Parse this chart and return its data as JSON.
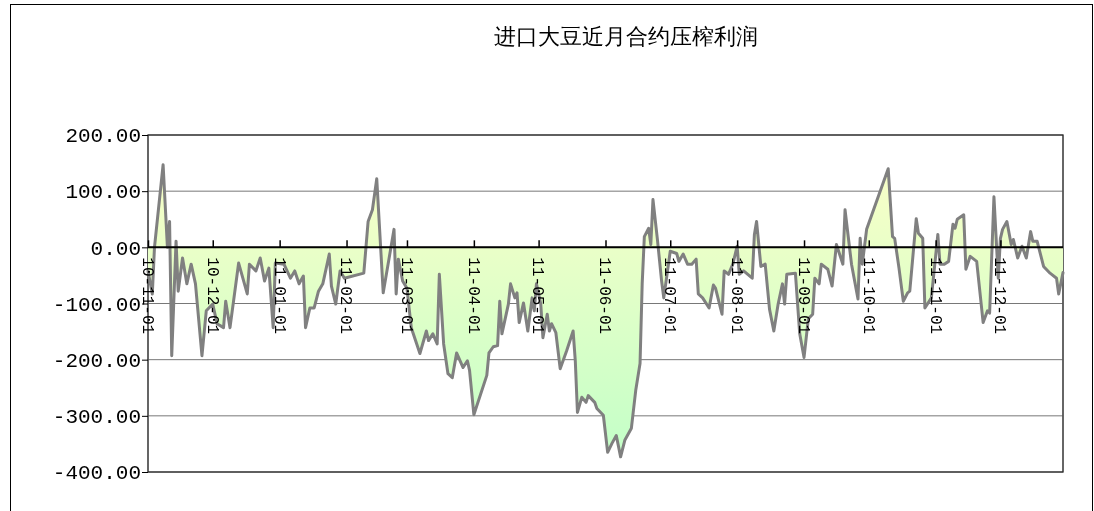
{
  "chart_data": {
    "type": "area",
    "title": "进口大豆近月合约压榨利润",
    "x": [
      "2010-11-01",
      "2010-11-03",
      "2010-11-04",
      "2010-11-08",
      "2010-11-10",
      "2010-11-11",
      "2010-11-12",
      "2010-11-14",
      "2010-11-15",
      "2010-11-17",
      "2010-11-19",
      "2010-11-21",
      "2010-11-23",
      "2010-11-26",
      "2010-11-28",
      "2010-12-01",
      "2010-12-03",
      "2010-12-06",
      "2010-12-07",
      "2010-12-09",
      "2010-12-13",
      "2010-12-17",
      "2010-12-18",
      "2010-12-21",
      "2010-12-23",
      "2010-12-25",
      "2010-12-27",
      "2010-12-29",
      "2010-12-30",
      "2011-01-03",
      "2011-01-06",
      "2011-01-08",
      "2011-01-10",
      "2011-01-12",
      "2011-01-13",
      "2011-01-15",
      "2011-01-17",
      "2011-01-19",
      "2011-01-21",
      "2011-01-24",
      "2011-01-25",
      "2011-01-27",
      "2011-01-29",
      "2011-01-31",
      "2011-02-09",
      "2011-02-11",
      "2011-02-13",
      "2011-02-15",
      "2011-02-18",
      "2011-02-23",
      "2011-02-24",
      "2011-02-25",
      "2011-02-27",
      "2011-03-01",
      "2011-03-03",
      "2011-03-07",
      "2011-03-10",
      "2011-03-11",
      "2011-03-13",
      "2011-03-15",
      "2011-03-16",
      "2011-03-18",
      "2011-03-20",
      "2011-03-22",
      "2011-03-24",
      "2011-03-27",
      "2011-03-29",
      "2011-03-30",
      "2011-04-01",
      "2011-04-07",
      "2011-04-08",
      "2011-04-10",
      "2011-04-12",
      "2011-04-13",
      "2011-04-14",
      "2011-04-17",
      "2011-04-18",
      "2011-04-20",
      "2011-04-21",
      "2011-04-22",
      "2011-04-24",
      "2011-04-26",
      "2011-04-28",
      "2011-04-29",
      "2011-04-30",
      "2011-05-02",
      "2011-05-03",
      "2011-05-05",
      "2011-05-06",
      "2011-05-07",
      "2011-05-09",
      "2011-05-11",
      "2011-05-14",
      "2011-05-17",
      "2011-05-18",
      "2011-05-19",
      "2011-05-21",
      "2011-05-23",
      "2011-05-24",
      "2011-05-27",
      "2011-05-28",
      "2011-05-31",
      "2011-06-02",
      "2011-06-04",
      "2011-06-06",
      "2011-06-08",
      "2011-06-10",
      "2011-06-13",
      "2011-06-15",
      "2011-06-17",
      "2011-06-18",
      "2011-06-19",
      "2011-06-21",
      "2011-06-22",
      "2011-06-23",
      "2011-06-25",
      "2011-06-27",
      "2011-06-28",
      "2011-07-01",
      "2011-07-04",
      "2011-07-05",
      "2011-07-07",
      "2011-07-09",
      "2011-07-11",
      "2011-07-13",
      "2011-07-14",
      "2011-07-16",
      "2011-07-19",
      "2011-07-21",
      "2011-07-22",
      "2011-07-25",
      "2011-07-26",
      "2011-07-28",
      "2011-07-30",
      "2011-08-01",
      "2011-08-02",
      "2011-08-04",
      "2011-08-08",
      "2011-08-09",
      "2011-08-10",
      "2011-08-12",
      "2011-08-14",
      "2011-08-16",
      "2011-08-18",
      "2011-08-20",
      "2011-08-22",
      "2011-08-23",
      "2011-08-24",
      "2011-08-28",
      "2011-08-30",
      "2011-09-01",
      "2011-09-03",
      "2011-09-05",
      "2011-09-06",
      "2011-09-08",
      "2011-09-09",
      "2011-09-12",
      "2011-09-14",
      "2011-09-16",
      "2011-09-19",
      "2011-09-20",
      "2011-09-23",
      "2011-09-26",
      "2011-09-27",
      "2011-09-28",
      "2011-09-30",
      "2011-10-10",
      "2011-10-12",
      "2011-10-13",
      "2011-10-15",
      "2011-10-17",
      "2011-10-19",
      "2011-10-20",
      "2011-10-23",
      "2011-10-24",
      "2011-10-26",
      "2011-10-27",
      "2011-10-30",
      "2011-11-02",
      "2011-11-03",
      "2011-11-05",
      "2011-11-07",
      "2011-11-09",
      "2011-11-10",
      "2011-11-11",
      "2011-11-14",
      "2011-11-15",
      "2011-11-17",
      "2011-11-20",
      "2011-11-23",
      "2011-11-25",
      "2011-11-26",
      "2011-11-28",
      "2011-11-30",
      "2011-12-01",
      "2011-12-02",
      "2011-12-04",
      "2011-12-06",
      "2011-12-07",
      "2011-12-09",
      "2011-12-11",
      "2011-12-13",
      "2011-12-15",
      "2011-12-16",
      "2011-12-18",
      "2011-12-21",
      "2011-12-24",
      "2011-12-27",
      "2011-12-28",
      "2011-12-30"
    ],
    "series": [
      {
        "color": "#808080",
        "values": [
          -42,
          -83,
          0,
          147,
          0,
          46,
          -193,
          11,
          -78,
          -19,
          -65,
          -30,
          -65,
          -193,
          -113,
          -101,
          -136,
          -143,
          -96,
          -143,
          -28,
          -83,
          -30,
          -42,
          -19,
          -60,
          -37,
          -143,
          -28,
          -30,
          -55,
          -42,
          -65,
          -51,
          -143,
          -108,
          -108,
          -78,
          -65,
          -12,
          -69,
          -101,
          -42,
          -55,
          -46,
          46,
          67,
          122,
          -81,
          32,
          -83,
          -21,
          -60,
          -73,
          -143,
          -189,
          -149,
          -166,
          -154,
          -172,
          -48,
          -172,
          -225,
          -232,
          -188,
          -214,
          -202,
          -219,
          -298,
          -228,
          -188,
          -177,
          -175,
          -96,
          -154,
          -101,
          -65,
          -90,
          -81,
          -134,
          -99,
          -149,
          -90,
          -113,
          -65,
          -101,
          -161,
          -119,
          -149,
          -136,
          -152,
          -216,
          -184,
          -149,
          -202,
          -294,
          -267,
          -276,
          -264,
          -276,
          -287,
          -299,
          -365,
          -349,
          -335,
          -373,
          -343,
          -322,
          -255,
          -207,
          -65,
          19,
          34,
          5,
          85,
          16,
          -60,
          -90,
          -7,
          -11,
          -25,
          -12,
          -30,
          -30,
          -21,
          -83,
          -90,
          -108,
          -67,
          -73,
          -119,
          -42,
          -48,
          -30,
          2,
          -48,
          -42,
          -55,
          23,
          46,
          -34,
          -30,
          -110,
          -149,
          -101,
          -65,
          -101,
          -48,
          -46,
          -154,
          -196,
          -127,
          -119,
          -55,
          -65,
          -30,
          -39,
          -69,
          5,
          -30,
          67,
          -30,
          -92,
          16,
          -30,
          32,
          140,
          19,
          16,
          -37,
          -96,
          -81,
          -78,
          51,
          25,
          16,
          -108,
          -90,
          23,
          -30,
          -30,
          -25,
          41,
          34,
          50,
          58,
          -39,
          -16,
          -25,
          -134,
          -113,
          -117,
          90,
          -55,
          16,
          32,
          46,
          5,
          14,
          -19,
          2,
          -19,
          28,
          11,
          11,
          -34,
          -46,
          -55,
          -83,
          -45
        ]
      }
    ],
    "xlim": [
      "2010-11-01",
      "2011-12-30"
    ],
    "xticks": [
      {
        "value": "2010-11-01",
        "label": "10-11-01"
      },
      {
        "value": "2010-12-01",
        "label": "10-12-01"
      },
      {
        "value": "2011-01-01",
        "label": "11-01-01"
      },
      {
        "value": "2011-02-01",
        "label": "11-02-01"
      },
      {
        "value": "2011-03-01",
        "label": "11-03-01"
      },
      {
        "value": "2011-04-01",
        "label": "11-04-01"
      },
      {
        "value": "2011-05-01",
        "label": "11-05-01"
      },
      {
        "value": "2011-06-01",
        "label": "11-06-01"
      },
      {
        "value": "2011-07-01",
        "label": "11-07-01"
      },
      {
        "value": "2011-08-01",
        "label": "11-08-01"
      },
      {
        "value": "2011-09-01",
        "label": "11-09-01"
      },
      {
        "value": "2011-10-01",
        "label": "11-10-01"
      },
      {
        "value": "2011-11-01",
        "label": "11-11-01"
      },
      {
        "value": "2011-12-01",
        "label": "11-12-01"
      }
    ],
    "ylim": [
      -400,
      200
    ],
    "yticks": [
      {
        "value": -400,
        "label": "-400.00"
      },
      {
        "value": -300,
        "label": "-300.00"
      },
      {
        "value": -200,
        "label": "-200.00"
      },
      {
        "value": -100,
        "label": "-100.00"
      },
      {
        "value": 0,
        "label": "0.00"
      },
      {
        "value": 100,
        "label": "100.00"
      },
      {
        "value": 200,
        "label": "200.00"
      }
    ],
    "grid": "y"
  }
}
